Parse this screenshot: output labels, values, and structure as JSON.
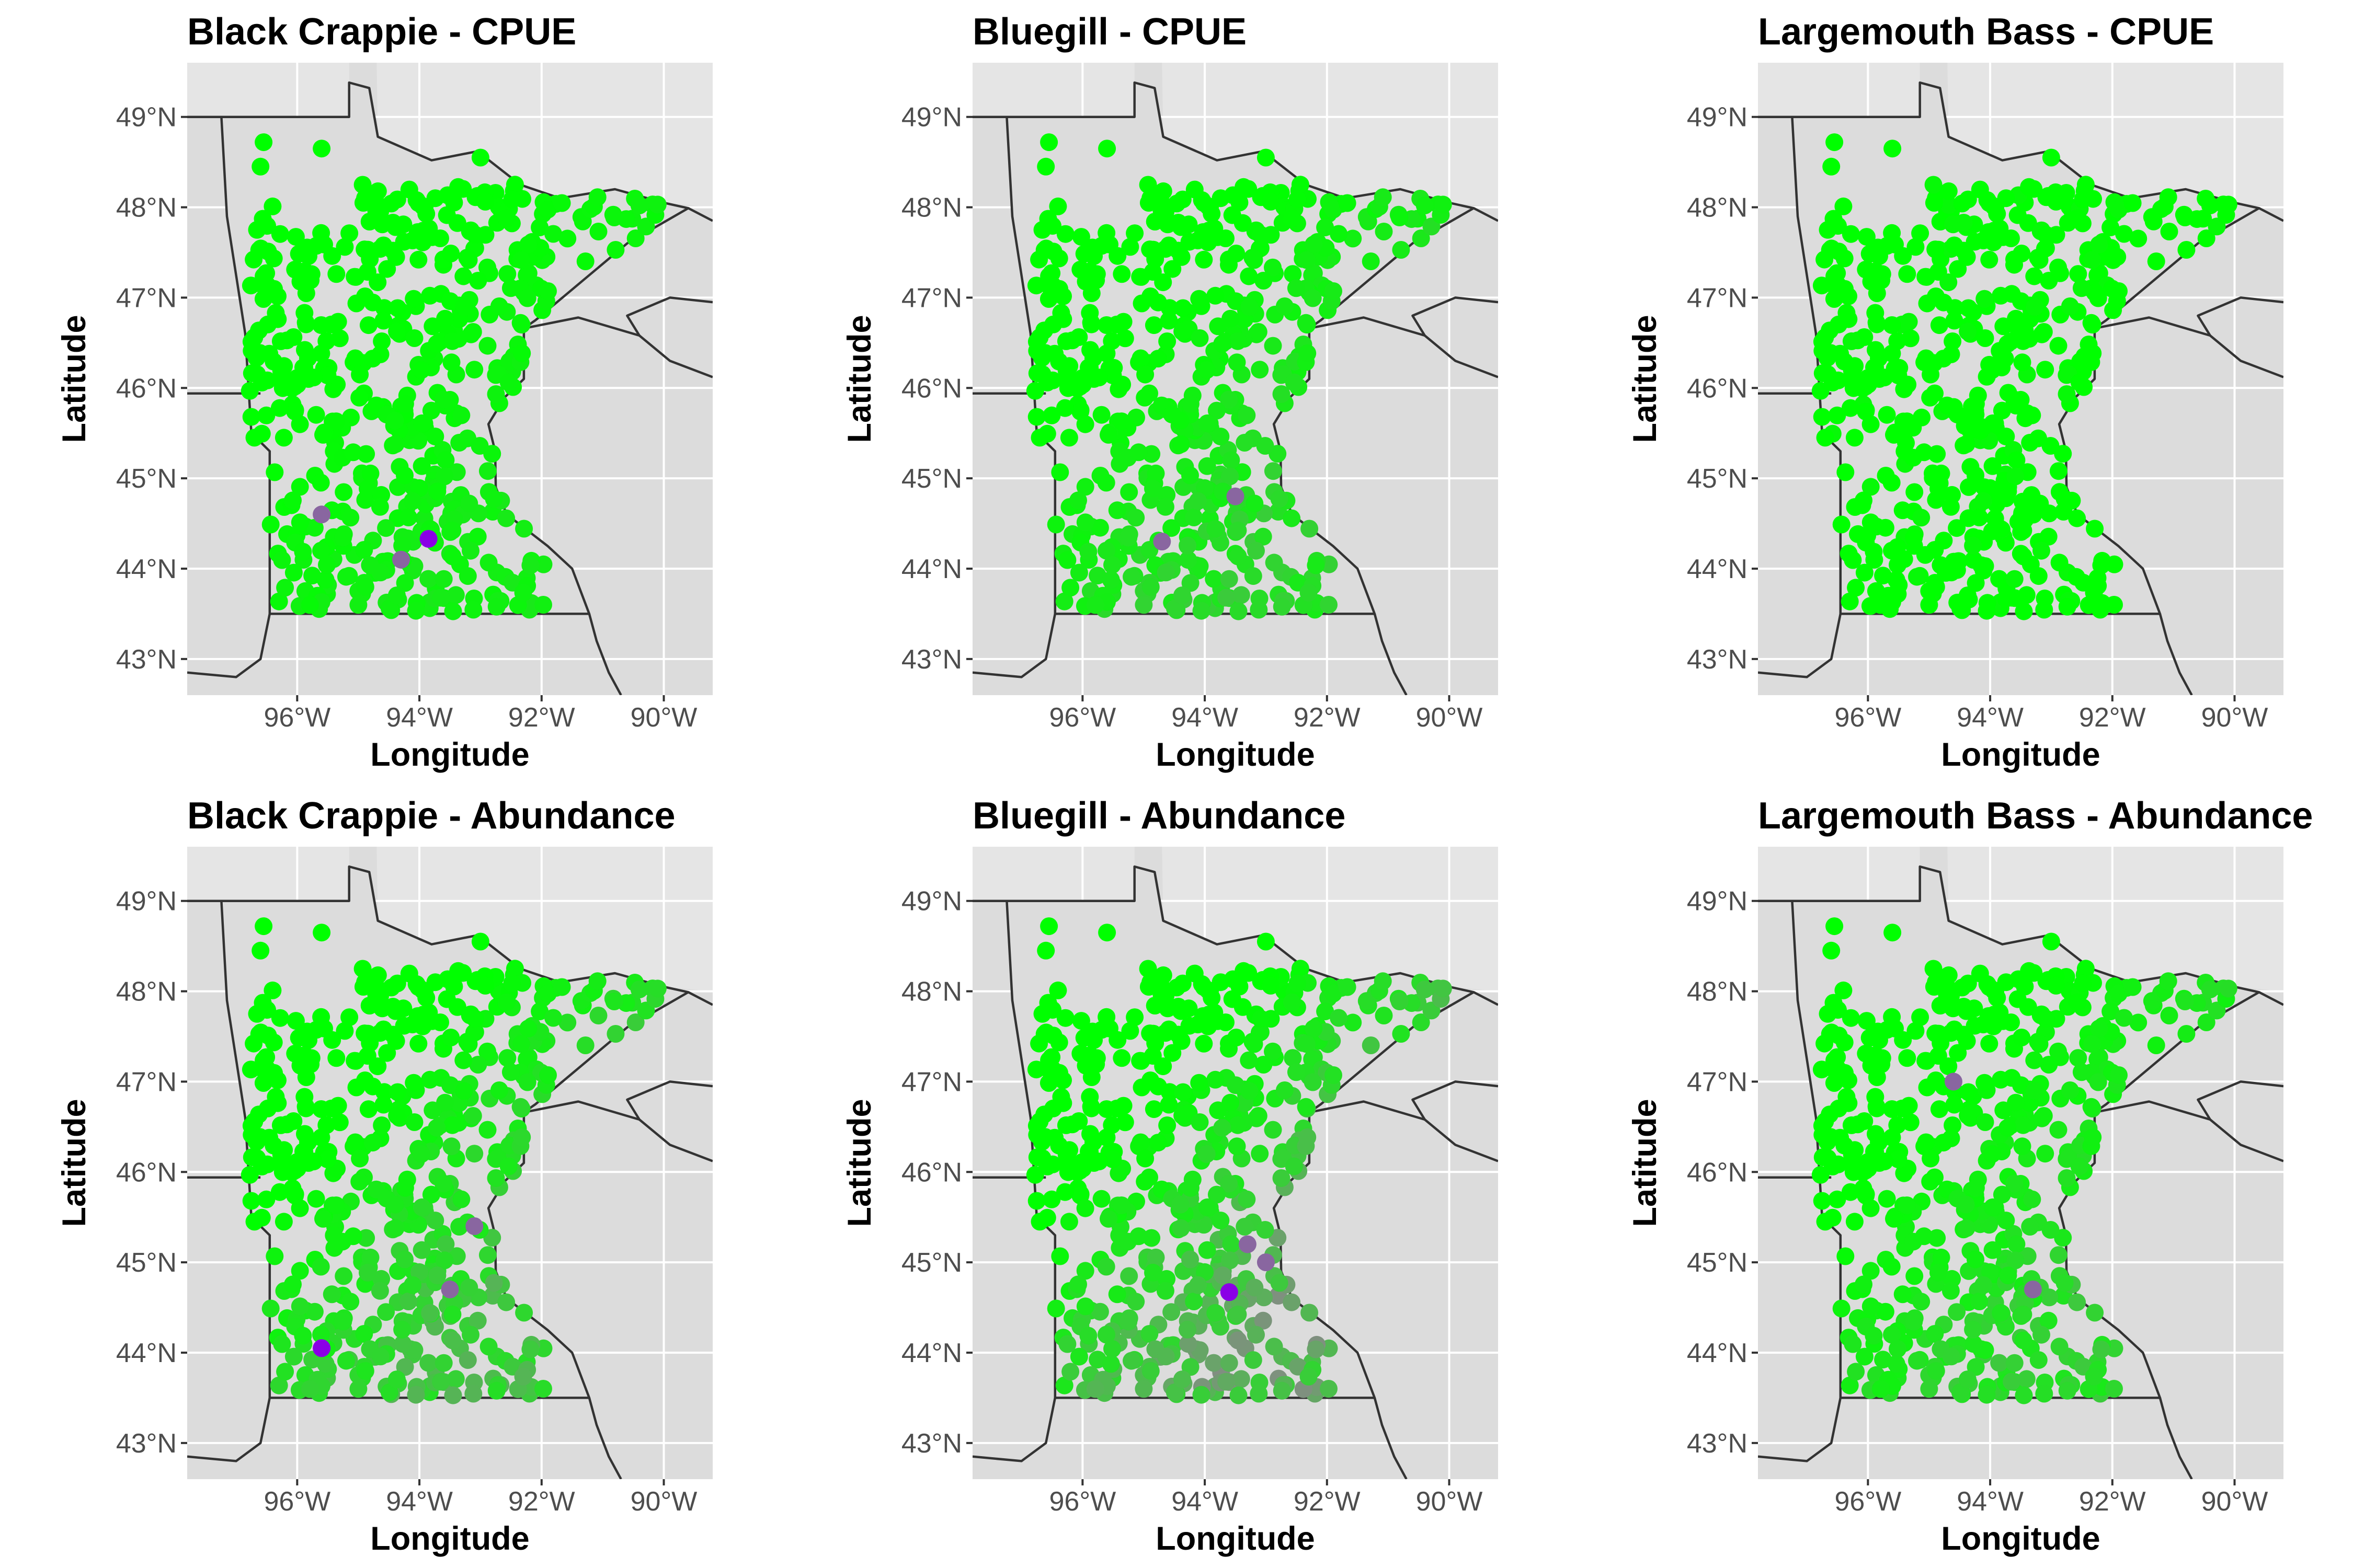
{
  "colors": {
    "panel_background": "#e5e5e5",
    "land": "#dcdcdc",
    "gridline": "#ffffff",
    "border": "#333333",
    "low_value_point": "#00ff00",
    "mid_value_point": "#888888",
    "high_value_point": "#8a00e6"
  },
  "chart_data": [
    {
      "type": "scatter",
      "title": "Black Crappie - CPUE",
      "xlabel": "Longitude",
      "ylabel": "Latitude",
      "xlim": [
        -97.8,
        -89.2
      ],
      "ylim": [
        42.6,
        49.6
      ],
      "x_ticks": [
        "96°W",
        "94°W",
        "92°W",
        "90°W"
      ],
      "y_ticks": [
        "43°N",
        "44°N",
        "45°N",
        "46°N",
        "47°N",
        "48°N",
        "49°N"
      ],
      "notable_points": [
        {
          "x": -93.85,
          "y": 44.33,
          "level": "high"
        },
        {
          "x": -94.3,
          "y": 44.1,
          "level": "mid"
        },
        {
          "x": -95.6,
          "y": 44.6,
          "level": "mid"
        }
      ]
    },
    {
      "type": "scatter",
      "title": "Bluegill - CPUE",
      "xlabel": "Longitude",
      "ylabel": "Latitude",
      "xlim": [
        -97.8,
        -89.2
      ],
      "ylim": [
        42.6,
        49.6
      ],
      "x_ticks": [
        "96°W",
        "94°W",
        "92°W",
        "90°W"
      ],
      "y_ticks": [
        "43°N",
        "44°N",
        "45°N",
        "46°N",
        "47°N",
        "48°N",
        "49°N"
      ],
      "notable_points": [
        {
          "x": -94.7,
          "y": 44.3,
          "level": "mid"
        },
        {
          "x": -93.5,
          "y": 44.8,
          "level": "mid"
        }
      ]
    },
    {
      "type": "scatter",
      "title": "Largemouth Bass - CPUE",
      "xlabel": "Longitude",
      "ylabel": "Latitude",
      "xlim": [
        -97.8,
        -89.2
      ],
      "ylim": [
        42.6,
        49.6
      ],
      "x_ticks": [
        "96°W",
        "94°W",
        "92°W",
        "90°W"
      ],
      "y_ticks": [
        "43°N",
        "44°N",
        "45°N",
        "46°N",
        "47°N",
        "48°N",
        "49°N"
      ],
      "notable_points": []
    },
    {
      "type": "scatter",
      "title": "Black Crappie - Abundance",
      "xlabel": "Longitude",
      "ylabel": "Latitude",
      "xlim": [
        -97.8,
        -89.2
      ],
      "ylim": [
        42.6,
        49.6
      ],
      "x_ticks": [
        "96°W",
        "94°W",
        "92°W",
        "90°W"
      ],
      "y_ticks": [
        "43°N",
        "44°N",
        "45°N",
        "46°N",
        "47°N",
        "48°N",
        "49°N"
      ],
      "notable_points": [
        {
          "x": -95.6,
          "y": 44.05,
          "level": "high"
        },
        {
          "x": -93.1,
          "y": 45.4,
          "level": "mid"
        },
        {
          "x": -93.5,
          "y": 44.7,
          "level": "mid"
        }
      ]
    },
    {
      "type": "scatter",
      "title": "Bluegill - Abundance",
      "xlabel": "Longitude",
      "ylabel": "Latitude",
      "xlim": [
        -97.8,
        -89.2
      ],
      "ylim": [
        42.6,
        49.6
      ],
      "x_ticks": [
        "96°W",
        "94°W",
        "92°W",
        "90°W"
      ],
      "y_ticks": [
        "43°N",
        "44°N",
        "45°N",
        "46°N",
        "47°N",
        "48°N",
        "49°N"
      ],
      "notable_points": [
        {
          "x": -93.6,
          "y": 44.67,
          "level": "high"
        },
        {
          "x": -93.0,
          "y": 45.0,
          "level": "mid"
        },
        {
          "x": -93.3,
          "y": 45.2,
          "level": "mid"
        }
      ]
    },
    {
      "type": "scatter",
      "title": "Largemouth Bass - Abundance",
      "xlabel": "Longitude",
      "ylabel": "Latitude",
      "xlim": [
        -97.8,
        -89.2
      ],
      "ylim": [
        42.6,
        49.6
      ],
      "x_ticks": [
        "96°W",
        "94°W",
        "92°W",
        "90°W"
      ],
      "y_ticks": [
        "43°N",
        "44°N",
        "45°N",
        "46°N",
        "47°N",
        "48°N",
        "49°N"
      ],
      "notable_points": [
        {
          "x": -94.6,
          "y": 47.0,
          "level": "mid"
        },
        {
          "x": -93.3,
          "y": 44.7,
          "level": "mid"
        }
      ]
    }
  ]
}
